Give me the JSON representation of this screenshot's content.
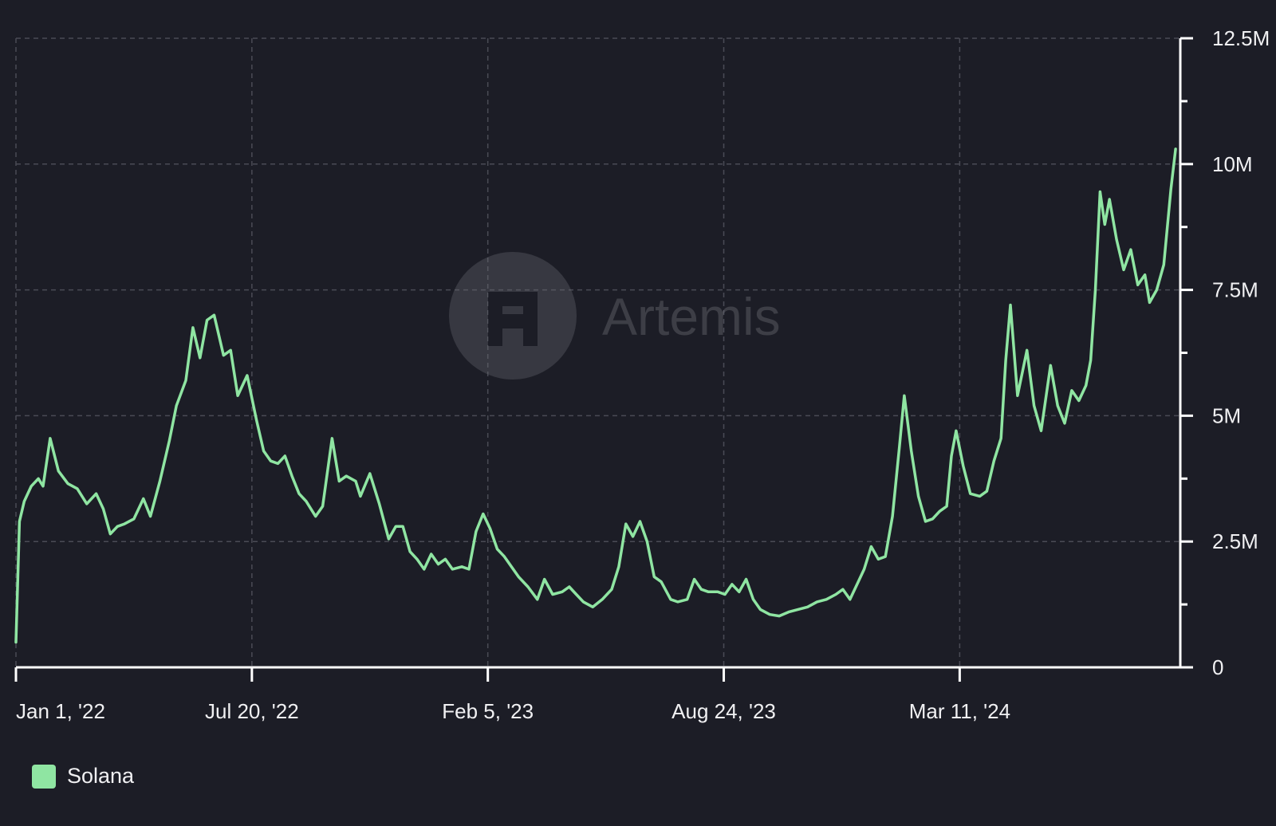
{
  "chart_data": {
    "type": "line",
    "title": "",
    "xlabel": "",
    "ylabel": "",
    "ylim": [
      0,
      12500000
    ],
    "grid": true,
    "y_axis_side": "right",
    "legend_placement": "bottom-left",
    "x_ticks": [
      {
        "date": "2022-01-01",
        "label": "Jan 1, '22"
      },
      {
        "date": "2022-07-20",
        "label": "Jul 20, '22"
      },
      {
        "date": "2023-02-05",
        "label": "Feb 5, '23"
      },
      {
        "date": "2023-08-24",
        "label": "Aug 24, '23"
      },
      {
        "date": "2024-03-11",
        "label": "Mar 11, '24"
      }
    ],
    "y_ticks": [
      {
        "value": 0,
        "label": "0"
      },
      {
        "value": 2500000,
        "label": "2.5M"
      },
      {
        "value": 5000000,
        "label": "5M"
      },
      {
        "value": 7500000,
        "label": "7.5M"
      },
      {
        "value": 10000000,
        "label": "10M"
      },
      {
        "value": 12500000,
        "label": "12.5M"
      }
    ],
    "series": [
      {
        "name": "Solana",
        "color": "#8fe5a2",
        "points": [
          [
            "2022-01-01",
            500000
          ],
          [
            "2022-01-04",
            2900000
          ],
          [
            "2022-01-08",
            3300000
          ],
          [
            "2022-01-14",
            3600000
          ],
          [
            "2022-01-20",
            3750000
          ],
          [
            "2022-01-24",
            3600000
          ],
          [
            "2022-01-30",
            4550000
          ],
          [
            "2022-02-06",
            3900000
          ],
          [
            "2022-02-14",
            3650000
          ],
          [
            "2022-02-22",
            3550000
          ],
          [
            "2022-03-02",
            3250000
          ],
          [
            "2022-03-10",
            3450000
          ],
          [
            "2022-03-16",
            3150000
          ],
          [
            "2022-03-22",
            2650000
          ],
          [
            "2022-03-28",
            2800000
          ],
          [
            "2022-04-03",
            2850000
          ],
          [
            "2022-04-11",
            2950000
          ],
          [
            "2022-04-19",
            3350000
          ],
          [
            "2022-04-25",
            3000000
          ],
          [
            "2022-05-03",
            3700000
          ],
          [
            "2022-05-11",
            4500000
          ],
          [
            "2022-05-17",
            5200000
          ],
          [
            "2022-05-25",
            5700000
          ],
          [
            "2022-05-31",
            6750000
          ],
          [
            "2022-06-06",
            6150000
          ],
          [
            "2022-06-12",
            6900000
          ],
          [
            "2022-06-18",
            7000000
          ],
          [
            "2022-06-26",
            6200000
          ],
          [
            "2022-07-02",
            6300000
          ],
          [
            "2022-07-08",
            5400000
          ],
          [
            "2022-07-16",
            5800000
          ],
          [
            "2022-07-24",
            4900000
          ],
          [
            "2022-07-30",
            4300000
          ],
          [
            "2022-08-05",
            4100000
          ],
          [
            "2022-08-11",
            4050000
          ],
          [
            "2022-08-17",
            4200000
          ],
          [
            "2022-08-23",
            3800000
          ],
          [
            "2022-08-29",
            3450000
          ],
          [
            "2022-09-04",
            3300000
          ],
          [
            "2022-09-12",
            3000000
          ],
          [
            "2022-09-18",
            3200000
          ],
          [
            "2022-09-26",
            4550000
          ],
          [
            "2022-10-02",
            3700000
          ],
          [
            "2022-10-08",
            3800000
          ],
          [
            "2022-10-16",
            3700000
          ],
          [
            "2022-10-20",
            3400000
          ],
          [
            "2022-10-28",
            3850000
          ],
          [
            "2022-11-05",
            3250000
          ],
          [
            "2022-11-13",
            2550000
          ],
          [
            "2022-11-19",
            2800000
          ],
          [
            "2022-11-25",
            2800000
          ],
          [
            "2022-12-01",
            2300000
          ],
          [
            "2022-12-07",
            2150000
          ],
          [
            "2022-12-13",
            1950000
          ],
          [
            "2022-12-19",
            2250000
          ],
          [
            "2022-12-25",
            2050000
          ],
          [
            "2022-12-31",
            2150000
          ],
          [
            "2023-01-06",
            1950000
          ],
          [
            "2023-01-14",
            2000000
          ],
          [
            "2023-01-20",
            1950000
          ],
          [
            "2023-01-26",
            2700000
          ],
          [
            "2023-02-01",
            3050000
          ],
          [
            "2023-02-07",
            2750000
          ],
          [
            "2023-02-13",
            2350000
          ],
          [
            "2023-02-19",
            2200000
          ],
          [
            "2023-02-25",
            2000000
          ],
          [
            "2023-03-03",
            1800000
          ],
          [
            "2023-03-11",
            1600000
          ],
          [
            "2023-03-19",
            1350000
          ],
          [
            "2023-03-25",
            1750000
          ],
          [
            "2023-04-01",
            1450000
          ],
          [
            "2023-04-09",
            1500000
          ],
          [
            "2023-04-15",
            1600000
          ],
          [
            "2023-04-21",
            1450000
          ],
          [
            "2023-04-27",
            1300000
          ],
          [
            "2023-05-05",
            1200000
          ],
          [
            "2023-05-13",
            1350000
          ],
          [
            "2023-05-21",
            1550000
          ],
          [
            "2023-05-27",
            2000000
          ],
          [
            "2023-06-02",
            2850000
          ],
          [
            "2023-06-08",
            2600000
          ],
          [
            "2023-06-14",
            2900000
          ],
          [
            "2023-06-20",
            2500000
          ],
          [
            "2023-06-26",
            1800000
          ],
          [
            "2023-07-02",
            1700000
          ],
          [
            "2023-07-10",
            1350000
          ],
          [
            "2023-07-16",
            1300000
          ],
          [
            "2023-07-24",
            1350000
          ],
          [
            "2023-07-30",
            1750000
          ],
          [
            "2023-08-05",
            1550000
          ],
          [
            "2023-08-11",
            1500000
          ],
          [
            "2023-08-19",
            1500000
          ],
          [
            "2023-08-25",
            1450000
          ],
          [
            "2023-08-31",
            1650000
          ],
          [
            "2023-09-06",
            1500000
          ],
          [
            "2023-09-12",
            1750000
          ],
          [
            "2023-09-18",
            1350000
          ],
          [
            "2023-09-24",
            1150000
          ],
          [
            "2023-10-02",
            1050000
          ],
          [
            "2023-10-10",
            1020000
          ],
          [
            "2023-10-18",
            1100000
          ],
          [
            "2023-10-26",
            1150000
          ],
          [
            "2023-11-03",
            1200000
          ],
          [
            "2023-11-11",
            1300000
          ],
          [
            "2023-11-19",
            1350000
          ],
          [
            "2023-11-27",
            1450000
          ],
          [
            "2023-12-03",
            1550000
          ],
          [
            "2023-12-09",
            1350000
          ],
          [
            "2023-12-15",
            1650000
          ],
          [
            "2023-12-21",
            1950000
          ],
          [
            "2023-12-27",
            2400000
          ],
          [
            "2024-01-02",
            2150000
          ],
          [
            "2024-01-08",
            2200000
          ],
          [
            "2024-01-14",
            3000000
          ],
          [
            "2024-01-20",
            4400000
          ],
          [
            "2024-01-24",
            5400000
          ],
          [
            "2024-01-30",
            4300000
          ],
          [
            "2024-02-05",
            3400000
          ],
          [
            "2024-02-11",
            2900000
          ],
          [
            "2024-02-17",
            2950000
          ],
          [
            "2024-02-23",
            3100000
          ],
          [
            "2024-02-29",
            3200000
          ],
          [
            "2024-03-04",
            4200000
          ],
          [
            "2024-03-08",
            4700000
          ],
          [
            "2024-03-14",
            4000000
          ],
          [
            "2024-03-20",
            3450000
          ],
          [
            "2024-03-28",
            3400000
          ],
          [
            "2024-04-03",
            3500000
          ],
          [
            "2024-04-09",
            4100000
          ],
          [
            "2024-04-15",
            4550000
          ],
          [
            "2024-04-19",
            6100000
          ],
          [
            "2024-04-23",
            7200000
          ],
          [
            "2024-04-29",
            5400000
          ],
          [
            "2024-05-07",
            6300000
          ],
          [
            "2024-05-13",
            5200000
          ],
          [
            "2024-05-19",
            4700000
          ],
          [
            "2024-05-27",
            6000000
          ],
          [
            "2024-06-02",
            5200000
          ],
          [
            "2024-06-08",
            4850000
          ],
          [
            "2024-06-14",
            5500000
          ],
          [
            "2024-06-20",
            5300000
          ],
          [
            "2024-06-26",
            5600000
          ],
          [
            "2024-06-30",
            6100000
          ],
          [
            "2024-07-04",
            7500000
          ],
          [
            "2024-07-08",
            9450000
          ],
          [
            "2024-07-12",
            8800000
          ],
          [
            "2024-07-16",
            9300000
          ],
          [
            "2024-07-22",
            8500000
          ],
          [
            "2024-07-28",
            7900000
          ],
          [
            "2024-08-03",
            8300000
          ],
          [
            "2024-08-09",
            7600000
          ],
          [
            "2024-08-15",
            7800000
          ],
          [
            "2024-08-19",
            7250000
          ],
          [
            "2024-08-25",
            7500000
          ],
          [
            "2024-08-31",
            8000000
          ],
          [
            "2024-09-06",
            9500000
          ],
          [
            "2024-09-10",
            10300000
          ]
        ]
      }
    ]
  },
  "watermark": {
    "text": "Artemis"
  },
  "legend": {
    "items": [
      {
        "label": "Solana",
        "color": "#8fe5a2"
      }
    ]
  }
}
